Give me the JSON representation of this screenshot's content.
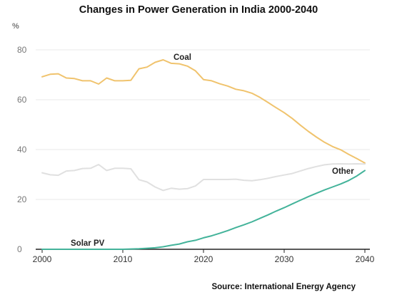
{
  "chart_data": {
    "type": "line",
    "title": "Changes in Power Generation in India 2000-2040",
    "ylabel": "%",
    "xlabel": "",
    "source": "Source: International Energy Agency",
    "xlim": [
      2000,
      2040
    ],
    "ylim": [
      0,
      80
    ],
    "x_ticks": [
      2000,
      2010,
      2020,
      2030,
      2040
    ],
    "y_ticks": [
      0,
      20,
      40,
      60,
      80
    ],
    "grid": "horizontal",
    "series": [
      {
        "name": "Coal",
        "color": "#f0c36d",
        "x": [
          2000,
          2001,
          2002,
          2003,
          2004,
          2005,
          2006,
          2007,
          2008,
          2009,
          2010,
          2011,
          2012,
          2013,
          2014,
          2015,
          2016,
          2017,
          2018,
          2019,
          2020,
          2021,
          2022,
          2023,
          2024,
          2025,
          2026,
          2027,
          2028,
          2029,
          2030,
          2031,
          2032,
          2033,
          2034,
          2035,
          2036,
          2037,
          2038,
          2039,
          2040
        ],
        "values": [
          69.2,
          70.2,
          70.4,
          68.7,
          68.5,
          67.6,
          67.6,
          66.3,
          68.7,
          67.6,
          67.6,
          67.8,
          72.4,
          73.1,
          75.0,
          76.0,
          74.6,
          74.4,
          73.5,
          71.6,
          68.1,
          67.6,
          66.4,
          65.5,
          64.2,
          63.6,
          62.6,
          60.9,
          58.9,
          56.8,
          54.8,
          52.5,
          49.8,
          47.3,
          45.0,
          42.9,
          41.2,
          39.9,
          38.1,
          36.4,
          34.6
        ]
      },
      {
        "name": "Other",
        "color": "#e0e0e0",
        "x": [
          2000,
          2001,
          2002,
          2003,
          2004,
          2005,
          2006,
          2007,
          2008,
          2009,
          2010,
          2011,
          2012,
          2013,
          2014,
          2015,
          2016,
          2017,
          2018,
          2019,
          2020,
          2021,
          2022,
          2023,
          2024,
          2025,
          2026,
          2027,
          2028,
          2029,
          2030,
          2031,
          2032,
          2033,
          2034,
          2035,
          2036,
          2037,
          2038,
          2039,
          2040
        ],
        "values": [
          30.7,
          29.9,
          29.7,
          31.4,
          31.6,
          32.4,
          32.5,
          34.0,
          31.6,
          32.5,
          32.5,
          32.3,
          27.9,
          27.0,
          25.0,
          23.6,
          24.5,
          24.1,
          24.3,
          25.4,
          28.0,
          28.0,
          28.0,
          28.0,
          28.1,
          27.7,
          27.5,
          27.9,
          28.5,
          29.2,
          29.8,
          30.4,
          31.4,
          32.4,
          33.2,
          33.9,
          34.2,
          34.3,
          34.2,
          34.3,
          34.2
        ]
      },
      {
        "name": "Solar PV",
        "color": "#43b39a",
        "x": [
          2000,
          2005,
          2010,
          2011,
          2012,
          2013,
          2014,
          2015,
          2016,
          2017,
          2018,
          2019,
          2020,
          2021,
          2022,
          2023,
          2024,
          2025,
          2026,
          2027,
          2028,
          2029,
          2030,
          2031,
          2032,
          2033,
          2034,
          2035,
          2036,
          2037,
          2038,
          2039,
          2040
        ],
        "values": [
          0.0,
          0.0,
          0.0,
          0.1,
          0.2,
          0.4,
          0.6,
          1.0,
          1.6,
          2.1,
          3.0,
          3.6,
          4.6,
          5.4,
          6.4,
          7.5,
          8.7,
          9.8,
          11.0,
          12.4,
          13.8,
          15.3,
          16.7,
          18.2,
          19.7,
          21.1,
          22.5,
          23.8,
          25.0,
          26.2,
          27.6,
          29.4,
          31.6
        ]
      }
    ]
  }
}
